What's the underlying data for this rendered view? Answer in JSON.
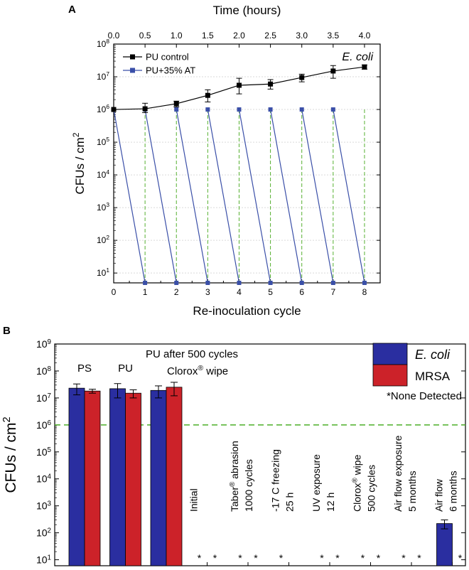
{
  "chart_data": [
    {
      "panel": "A",
      "type": "line",
      "xlabel": "Re-inoculation cycle",
      "x2label": "Time (hours)",
      "ylabel": "CFUs / cm²",
      "yscale": "log",
      "ylim": [
        5,
        100000000
      ],
      "xlim": [
        0,
        8.5
      ],
      "x": [
        0,
        1,
        2,
        3,
        4,
        5,
        6,
        7,
        8
      ],
      "x_ticks": [
        "0",
        "1",
        "2",
        "3",
        "4",
        "5",
        "6",
        "7",
        "8"
      ],
      "x2_ticks": [
        "0.0",
        "0.5",
        "1.0",
        "1.5",
        "2.0",
        "2.5",
        "3.0",
        "3.5",
        "4.0"
      ],
      "y_ticks": [
        "10¹",
        "10²",
        "10³",
        "10⁴",
        "10⁵",
        "10⁶",
        "10⁷",
        "10⁸"
      ],
      "annotation": "E. coli",
      "grid": true,
      "legend_position": "top-left",
      "series": [
        {
          "name": "PU control",
          "color": "#000000",
          "values": [
            1000000,
            1050000,
            1500000,
            2700000,
            5500000,
            6000000,
            9500000,
            15000000,
            20000000
          ],
          "err_low": [
            0,
            250000,
            300000,
            1000000,
            2500000,
            1800000,
            2500000,
            6000000,
            3000000
          ],
          "err_high": [
            0,
            500000,
            300000,
            1300000,
            3500000,
            2200000,
            2500000,
            7000000,
            3000000
          ]
        },
        {
          "name": "PU+35% AT",
          "color": "#3a4fa8",
          "pattern": "sawtooth: 1.0E6 after each inoculation, 5 after each cycle",
          "top_x": [
            0,
            1,
            2,
            3,
            4,
            5,
            6,
            7
          ],
          "top_y": 1000000,
          "bottom_x": [
            1,
            2,
            3,
            4,
            5,
            6,
            7,
            8
          ],
          "bottom_y": 5
        }
      ]
    },
    {
      "panel": "B",
      "type": "bar",
      "ylabel": "CFUs / cm²",
      "yscale": "log",
      "ylim": [
        6,
        1000000000
      ],
      "y_ticks": [
        "10¹",
        "10²",
        "10³",
        "10⁴",
        "10⁵",
        "10⁶",
        "10⁷",
        "10⁸",
        "10⁹"
      ],
      "threshold": 1000000,
      "threshold_color": "#4caf28",
      "legend_position": "top-right",
      "legend_note": "*None Detected",
      "series": [
        {
          "name": "E. coli",
          "color": "#2a2ea0"
        },
        {
          "name": "MRSA",
          "color": "#cc2229"
        }
      ],
      "groups": [
        {
          "label": "PS",
          "ecoli": 23000000,
          "ecoli_err": 10000000,
          "mrsa": 18000000,
          "mrsa_err": 3000000
        },
        {
          "label": "PU",
          "ecoli": 22000000,
          "ecoli_err": 12000000,
          "mrsa": 15000000,
          "mrsa_err": 5000000
        },
        {
          "label_lines": [
            "PU after 500 cycles",
            "Clorox® wipe"
          ],
          "ecoli": 19000000,
          "ecoli_err": 9000000,
          "mrsa": 25000000,
          "mrsa_err": 13000000
        },
        {
          "label_lines": [
            "Initial"
          ],
          "ecoli": null,
          "mrsa": null
        },
        {
          "label_lines": [
            "Taber® abrasion",
            "1000 cycles"
          ],
          "ecoli": null,
          "mrsa": null
        },
        {
          "label_lines": [
            "-17 C freezing",
            "25 h"
          ],
          "ecoli": null,
          "mrsa": 6
        },
        {
          "label_lines": [
            "UV exposure",
            "12 h"
          ],
          "ecoli": null,
          "mrsa": null
        },
        {
          "label_lines": [
            "Clorox® wipe",
            "500 cycles"
          ],
          "ecoli": null,
          "mrsa": null
        },
        {
          "label_lines": [
            "Air flow exposure",
            "5 months"
          ],
          "ecoli": null,
          "mrsa": null
        },
        {
          "label_lines": [
            "Air flow",
            "6 months"
          ],
          "ecoli": 220,
          "ecoli_err": 80,
          "mrsa": null
        }
      ]
    }
  ],
  "panel_labels": [
    "A",
    "B"
  ],
  "star_symbol": "*"
}
